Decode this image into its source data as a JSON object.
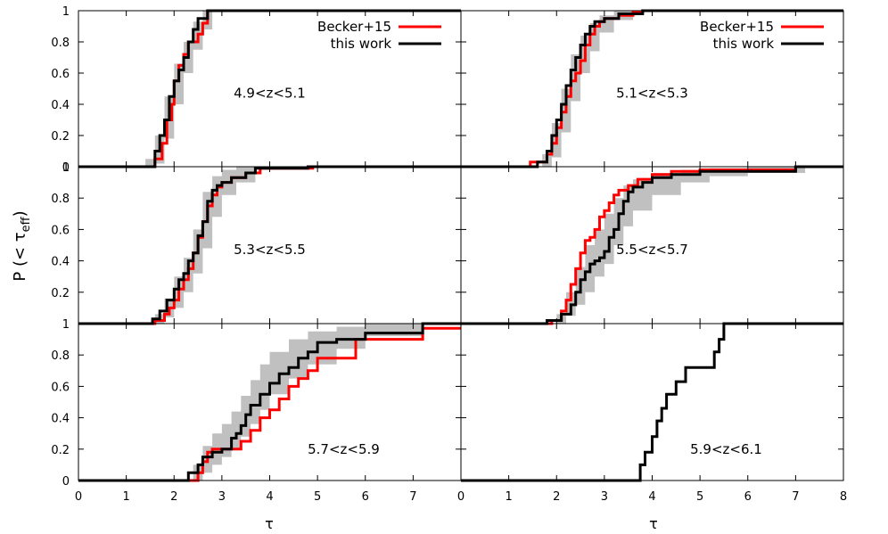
{
  "figure": {
    "ylabel_main": "P (< τ",
    "ylabel_sub": "eff",
    "ylabel_close": ")",
    "xlabel_left": "τ",
    "xlabel_right": "τ"
  },
  "colors": {
    "becker": "#ff0000",
    "thiswork": "#000000",
    "band": "#c0c0c0"
  },
  "chart_data": [
    {
      "type": "line",
      "panel": "top-left",
      "annotation": "4.9<z<5.1",
      "xlim": [
        0,
        8
      ],
      "ylim": [
        0,
        1
      ],
      "xticks": [],
      "yticks": [
        "0",
        "0.2",
        "0.4",
        "0.6",
        "0.8",
        "1"
      ],
      "legend": {
        "position": "top-right",
        "entries": [
          "Becker+15",
          "this work"
        ]
      },
      "series": [
        {
          "name": "Becker+15",
          "x": [
            0,
            1.4,
            1.6,
            1.75,
            1.85,
            1.95,
            2.0,
            2.1,
            2.2,
            2.3,
            2.5,
            2.6,
            2.7,
            3.0,
            8.0
          ],
          "y": [
            0,
            0,
            0.05,
            0.15,
            0.3,
            0.4,
            0.55,
            0.65,
            0.72,
            0.8,
            0.85,
            0.92,
            1,
            1,
            1
          ]
        },
        {
          "name": "this work",
          "x": [
            0,
            1.5,
            1.6,
            1.7,
            1.8,
            1.9,
            2.0,
            2.1,
            2.2,
            2.3,
            2.4,
            2.5,
            2.7,
            8.0
          ],
          "y": [
            0,
            0,
            0.1,
            0.2,
            0.3,
            0.45,
            0.55,
            0.62,
            0.7,
            0.8,
            0.88,
            0.95,
            1,
            1
          ]
        }
      ],
      "band": {
        "x": [
          1.4,
          1.6,
          1.8,
          2.0,
          2.2,
          2.4,
          2.6,
          2.8
        ],
        "lower": [
          0,
          0.02,
          0.18,
          0.4,
          0.6,
          0.75,
          0.88,
          1
        ],
        "upper": [
          0.05,
          0.2,
          0.45,
          0.66,
          0.8,
          0.93,
          1,
          1
        ]
      }
    },
    {
      "type": "line",
      "panel": "top-right",
      "annotation": "5.1<z<5.3",
      "xlim": [
        0,
        8
      ],
      "ylim": [
        0,
        1
      ],
      "xticks": [],
      "yticks": [],
      "legend": {
        "position": "top-right",
        "entries": [
          "Becker+15",
          "this work"
        ]
      },
      "series": [
        {
          "name": "Becker+15",
          "x": [
            0,
            1.45,
            1.8,
            1.9,
            2.0,
            2.1,
            2.2,
            2.3,
            2.4,
            2.5,
            2.6,
            2.7,
            2.8,
            2.9,
            3.0,
            3.3,
            3.6,
            3.8,
            8.0
          ],
          "y": [
            0,
            0.03,
            0.08,
            0.15,
            0.25,
            0.35,
            0.45,
            0.55,
            0.6,
            0.68,
            0.78,
            0.85,
            0.9,
            0.93,
            0.95,
            0.97,
            0.99,
            1,
            1
          ]
        },
        {
          "name": "this work",
          "x": [
            0,
            1.6,
            1.8,
            1.9,
            2.0,
            2.1,
            2.2,
            2.3,
            2.4,
            2.5,
            2.6,
            2.7,
            2.8,
            3.0,
            3.3,
            3.8,
            8.0
          ],
          "y": [
            0,
            0.03,
            0.1,
            0.2,
            0.3,
            0.4,
            0.52,
            0.62,
            0.7,
            0.78,
            0.85,
            0.9,
            0.93,
            0.95,
            0.98,
            1,
            1
          ]
        }
      ],
      "band": {
        "x": [
          1.7,
          1.9,
          2.1,
          2.3,
          2.5,
          2.7,
          2.9,
          3.2,
          3.6
        ],
        "lower": [
          0,
          0.06,
          0.22,
          0.42,
          0.6,
          0.74,
          0.86,
          0.94,
          1
        ],
        "upper": [
          0.08,
          0.28,
          0.5,
          0.72,
          0.84,
          0.92,
          0.97,
          1,
          1
        ]
      }
    },
    {
      "type": "line",
      "panel": "middle-left",
      "annotation": "5.3<z<5.5",
      "xlim": [
        0,
        8
      ],
      "ylim": [
        0,
        1
      ],
      "xticks": [],
      "yticks": [
        "0.2",
        "0.4",
        "0.6",
        "0.8",
        "1"
      ],
      "series": [
        {
          "name": "Becker+15",
          "x": [
            0,
            1.6,
            1.8,
            1.9,
            2.0,
            2.1,
            2.2,
            2.3,
            2.4,
            2.5,
            2.6,
            2.7,
            2.8,
            2.9,
            3.0,
            3.2,
            3.5,
            3.8,
            4.9,
            8.0
          ],
          "y": [
            0,
            0.02,
            0.06,
            0.1,
            0.15,
            0.22,
            0.28,
            0.35,
            0.45,
            0.55,
            0.65,
            0.75,
            0.82,
            0.87,
            0.9,
            0.93,
            0.96,
            0.99,
            1,
            1
          ]
        },
        {
          "name": "this work",
          "x": [
            0,
            1.55,
            1.7,
            1.85,
            2.0,
            2.1,
            2.2,
            2.3,
            2.4,
            2.5,
            2.6,
            2.7,
            2.8,
            2.9,
            3.0,
            3.2,
            3.5,
            3.7,
            4.8,
            8.0
          ],
          "y": [
            0,
            0.03,
            0.08,
            0.15,
            0.22,
            0.28,
            0.32,
            0.4,
            0.45,
            0.56,
            0.65,
            0.78,
            0.85,
            0.88,
            0.9,
            0.93,
            0.96,
            0.99,
            1,
            1
          ]
        }
      ],
      "band": {
        "x": [
          1.6,
          1.8,
          2.0,
          2.2,
          2.4,
          2.6,
          2.8,
          3.0,
          3.3,
          3.7
        ],
        "lower": [
          0,
          0.04,
          0.1,
          0.2,
          0.32,
          0.48,
          0.68,
          0.82,
          0.9,
          0.98
        ],
        "upper": [
          0.06,
          0.16,
          0.3,
          0.42,
          0.6,
          0.84,
          0.94,
          0.98,
          1,
          1
        ]
      }
    },
    {
      "type": "line",
      "panel": "middle-right",
      "annotation": "5.5<z<5.7",
      "xlim": [
        0,
        8
      ],
      "ylim": [
        0,
        1
      ],
      "xticks": [],
      "yticks": [],
      "series": [
        {
          "name": "Becker+15",
          "x": [
            0,
            1.9,
            2.1,
            2.2,
            2.3,
            2.4,
            2.5,
            2.6,
            2.7,
            2.8,
            2.9,
            3.0,
            3.1,
            3.2,
            3.3,
            3.5,
            3.7,
            4.0,
            4.4,
            5.0,
            7.0,
            8.0
          ],
          "y": [
            0,
            0.02,
            0.08,
            0.15,
            0.25,
            0.35,
            0.45,
            0.53,
            0.55,
            0.6,
            0.68,
            0.72,
            0.77,
            0.82,
            0.85,
            0.88,
            0.92,
            0.95,
            0.97,
            0.98,
            1,
            1
          ]
        },
        {
          "name": "this work",
          "x": [
            0,
            1.8,
            2.1,
            2.3,
            2.4,
            2.5,
            2.6,
            2.7,
            2.8,
            2.9,
            3.0,
            3.1,
            3.2,
            3.3,
            3.4,
            3.5,
            3.6,
            3.8,
            4.0,
            4.4,
            5.0,
            7.0,
            8.0
          ],
          "y": [
            0,
            0.02,
            0.06,
            0.12,
            0.2,
            0.28,
            0.33,
            0.38,
            0.4,
            0.42,
            0.46,
            0.55,
            0.6,
            0.7,
            0.78,
            0.84,
            0.87,
            0.9,
            0.93,
            0.95,
            0.97,
            1,
            1
          ]
        }
      ],
      "band": {
        "x": [
          2.0,
          2.2,
          2.4,
          2.6,
          2.8,
          3.0,
          3.2,
          3.4,
          3.6,
          4.0,
          4.6,
          5.2,
          6.0,
          7.2
        ],
        "lower": [
          0,
          0.05,
          0.12,
          0.2,
          0.3,
          0.38,
          0.5,
          0.62,
          0.72,
          0.82,
          0.9,
          0.94,
          0.96,
          1
        ],
        "upper": [
          0.06,
          0.2,
          0.36,
          0.5,
          0.6,
          0.7,
          0.8,
          0.88,
          0.92,
          0.96,
          0.98,
          0.99,
          1,
          1
        ]
      }
    },
    {
      "type": "line",
      "panel": "bottom-left",
      "annotation": "5.7<z<5.9",
      "xlim": [
        0,
        8
      ],
      "ylim": [
        0,
        1
      ],
      "xticks": [
        "0",
        "1",
        "2",
        "3",
        "4",
        "5",
        "6",
        "7"
      ],
      "yticks": [
        "0",
        "0.2",
        "0.4",
        "0.6",
        "0.8",
        "1"
      ],
      "series": [
        {
          "name": "Becker+15",
          "x": [
            0,
            2.5,
            2.6,
            2.7,
            2.8,
            3.2,
            3.4,
            3.6,
            3.8,
            4.0,
            4.2,
            4.4,
            4.6,
            4.8,
            5.0,
            5.8,
            7.2,
            8.0
          ],
          "y": [
            0,
            0.05,
            0.12,
            0.18,
            0.2,
            0.2,
            0.25,
            0.32,
            0.4,
            0.45,
            0.52,
            0.6,
            0.65,
            0.7,
            0.78,
            0.9,
            0.97,
            0.97
          ]
        },
        {
          "name": "this work",
          "x": [
            0,
            2.3,
            2.5,
            2.6,
            2.8,
            3.0,
            3.2,
            3.3,
            3.4,
            3.5,
            3.6,
            3.8,
            4.0,
            4.2,
            4.4,
            4.6,
            4.8,
            5.0,
            5.4,
            6.0,
            7.2,
            8.0
          ],
          "y": [
            0,
            0.05,
            0.1,
            0.15,
            0.18,
            0.2,
            0.27,
            0.3,
            0.35,
            0.42,
            0.48,
            0.55,
            0.62,
            0.68,
            0.72,
            0.78,
            0.82,
            0.88,
            0.9,
            0.94,
            1,
            1
          ]
        }
      ],
      "band": {
        "x": [
          2.4,
          2.6,
          2.8,
          3.0,
          3.2,
          3.4,
          3.6,
          3.8,
          4.0,
          4.4,
          4.8,
          5.4,
          6.0,
          7.2
        ],
        "lower": [
          0,
          0.05,
          0.1,
          0.15,
          0.2,
          0.28,
          0.36,
          0.45,
          0.55,
          0.65,
          0.74,
          0.84,
          0.92,
          1
        ],
        "upper": [
          0.1,
          0.22,
          0.3,
          0.36,
          0.44,
          0.54,
          0.64,
          0.74,
          0.82,
          0.9,
          0.95,
          0.98,
          1,
          1
        ]
      }
    },
    {
      "type": "line",
      "panel": "bottom-right",
      "annotation": "5.9<z<6.1",
      "xlim": [
        0,
        8
      ],
      "ylim": [
        0,
        1
      ],
      "xticks": [
        "0",
        "1",
        "2",
        "3",
        "4",
        "5",
        "6",
        "7",
        "8"
      ],
      "yticks": [],
      "series": [
        {
          "name": "this work",
          "x": [
            0,
            3.75,
            3.85,
            4.0,
            4.1,
            4.2,
            4.3,
            4.5,
            4.7,
            5.3,
            5.4,
            5.5,
            5.8,
            8.0
          ],
          "y": [
            0,
            0.1,
            0.18,
            0.28,
            0.38,
            0.46,
            0.55,
            0.63,
            0.72,
            0.82,
            0.9,
            1,
            1,
            1
          ]
        }
      ]
    }
  ]
}
